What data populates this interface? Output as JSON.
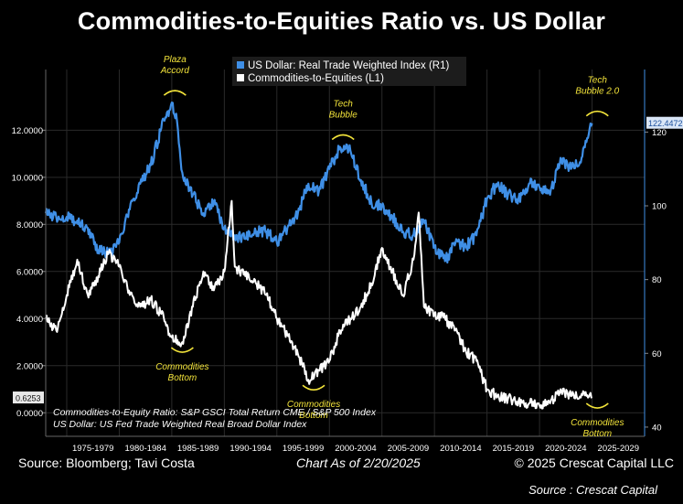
{
  "title": "Commodities-to-Equities Ratio vs. US Dollar",
  "footer": {
    "source": "Source: Bloomberg; Tavi Costa",
    "asof": "Chart As of 2/20/2025",
    "copyright": "© 2025 Crescat Capital LLC",
    "credit": "Source : Crescat Capital"
  },
  "colors": {
    "usd": "#3f8fe6",
    "ratio": "#ffffff",
    "annotation": "#f2e33a",
    "background": "#000000"
  },
  "chart_data": {
    "type": "line",
    "legend": [
      "US Dollar: Real Trade Weighted Index (R1)",
      "Commodities-to-Equities (L1)"
    ],
    "legend_position": "top-center",
    "notes": [
      "Commodities-to-Equity Ratio: S&P GSCI Total Return CME / S&P 500 Index",
      "US Dollar: US Fed Trade Weighted Real Broad Dollar Index"
    ],
    "x_categories": [
      "1975-1979",
      "1980-1984",
      "1985-1989",
      "1990-1994",
      "1995-1999",
      "2000-2004",
      "2005-2009",
      "2010-2014",
      "2015-2019",
      "2020-2024",
      "2025-2029"
    ],
    "x_range": [
      1973,
      2030
    ],
    "left_axis": {
      "range": [
        -1,
        13.8
      ],
      "ticks": [
        "0.0000",
        "2.0000",
        "4.0000",
        "6.0000",
        "8.0000",
        "10.0000",
        "12.0000"
      ],
      "last_value_label": "0.6253"
    },
    "right_axis": {
      "range": [
        37.5,
        132
      ],
      "ticks": [
        "40",
        "60",
        "80",
        "100",
        "120"
      ],
      "last_value_label": "122.4472"
    },
    "series": [
      {
        "name": "US Dollar: Real Trade Weighted Index (R1)",
        "axis": "right",
        "x": [
          1973.0,
          1974.0,
          1975.0,
          1976.0,
          1977.0,
          1978.0,
          1979.0,
          1980.0,
          1981.0,
          1982.0,
          1983.0,
          1984.0,
          1985.0,
          1985.5,
          1986.0,
          1987.0,
          1988.0,
          1989.0,
          1990.0,
          1991.0,
          1992.0,
          1993.0,
          1994.0,
          1995.0,
          1996.0,
          1997.0,
          1998.0,
          1999.0,
          2000.0,
          2001.0,
          2002.0,
          2003.0,
          2004.0,
          2005.0,
          2006.0,
          2007.0,
          2008.0,
          2009.0,
          2010.0,
          2011.0,
          2012.0,
          2013.0,
          2014.0,
          2015.0,
          2016.0,
          2017.0,
          2018.0,
          2019.0,
          2020.0,
          2021.0,
          2022.0,
          2023.0,
          2024.0,
          2025.0
        ],
        "y": [
          98,
          97,
          97,
          96,
          94,
          88,
          87,
          90,
          99,
          106,
          111,
          121,
          128,
          123,
          109,
          103,
          98,
          101,
          94,
          92,
          91,
          93,
          93,
          90,
          94,
          98,
          106,
          104,
          110,
          116,
          115,
          107,
          101,
          100,
          97,
          93,
          92,
          96,
          89,
          85,
          90,
          89,
          92,
          102,
          106,
          103,
          102,
          106,
          105,
          103,
          113,
          110,
          113,
          122.4
        ]
      },
      {
        "name": "Commodities-to-Equities (L1)",
        "axis": "left",
        "x": [
          1973.0,
          1974.0,
          1975.0,
          1976.0,
          1977.0,
          1978.0,
          1979.0,
          1980.0,
          1981.0,
          1982.0,
          1983.0,
          1984.0,
          1985.0,
          1986.0,
          1987.0,
          1988.0,
          1989.0,
          1990.0,
          1990.7,
          1991.0,
          1992.0,
          1993.0,
          1994.0,
          1995.0,
          1996.0,
          1997.0,
          1998.0,
          1999.0,
          2000.0,
          2001.0,
          2002.0,
          2003.0,
          2004.0,
          2005.0,
          2006.0,
          2007.0,
          2008.0,
          2008.5,
          2009.0,
          2010.0,
          2011.0,
          2012.0,
          2013.0,
          2014.0,
          2015.0,
          2016.0,
          2017.0,
          2018.0,
          2019.0,
          2020.0,
          2021.0,
          2022.0,
          2023.0,
          2024.0,
          2025.0
        ],
        "y": [
          4.0,
          3.5,
          5.0,
          6.5,
          5.0,
          5.8,
          6.8,
          6.2,
          5.0,
          4.5,
          4.8,
          4.2,
          3.2,
          3.0,
          4.5,
          6.0,
          5.2,
          6.0,
          9.0,
          6.2,
          5.8,
          5.5,
          5.0,
          4.0,
          3.3,
          2.5,
          1.4,
          1.8,
          2.2,
          3.5,
          4.0,
          4.5,
          5.5,
          7.0,
          6.0,
          5.0,
          6.5,
          8.5,
          4.5,
          4.2,
          4.0,
          3.5,
          2.6,
          2.2,
          1.0,
          0.7,
          0.6,
          0.5,
          0.4,
          0.3,
          0.4,
          1.0,
          0.7,
          0.8,
          0.63
        ]
      }
    ],
    "annotations": [
      {
        "text": [
          "Plaza",
          "Accord"
        ],
        "x": 1985.3,
        "y": 128,
        "axis": "right",
        "position": "above"
      },
      {
        "text": [
          "Tech",
          "Bubble"
        ],
        "x": 2001.3,
        "y": 116,
        "axis": "right",
        "position": "above"
      },
      {
        "text": [
          "Tech",
          "Bubble 2.0"
        ],
        "x": 2025.5,
        "y": 122.4,
        "axis": "right",
        "position": "above"
      },
      {
        "text": [
          "Commodities",
          "Bottom"
        ],
        "x": 1986.0,
        "y": 3.0,
        "axis": "left",
        "position": "below"
      },
      {
        "text": [
          "Commodities",
          "Bottom"
        ],
        "x": 1998.5,
        "y": 1.4,
        "axis": "left",
        "position": "below"
      },
      {
        "text": [
          "Commodities",
          "Bottom"
        ],
        "x": 2025.5,
        "y": 0.63,
        "axis": "left",
        "position": "below"
      }
    ]
  }
}
